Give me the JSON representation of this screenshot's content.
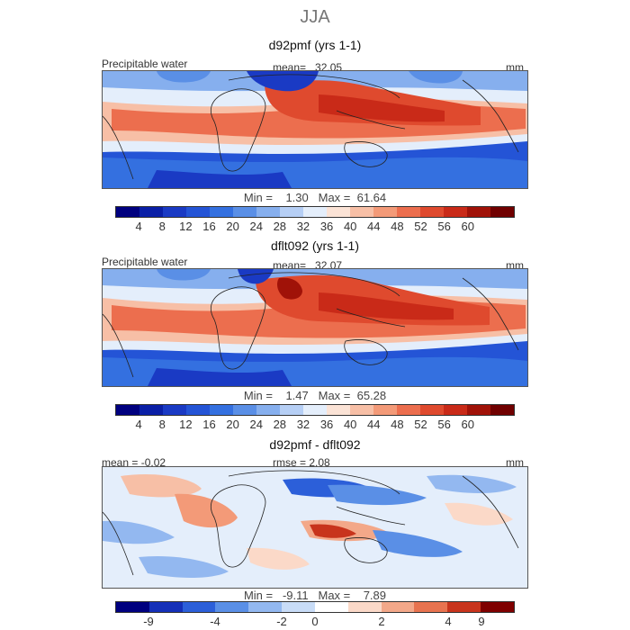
{
  "title": "JJA",
  "panels": [
    {
      "title": "d92pmf (yrs 1-1)",
      "variable": "Precipitable water",
      "mean_label": "mean=",
      "mean": "32.05",
      "units": "mm",
      "min_label": "Min =",
      "min": "1.30",
      "max_label": "Max =",
      "max": "61.64"
    },
    {
      "title": "dflt092 (yrs 1-1)",
      "variable": "Precipitable water",
      "mean_label": "mean=",
      "mean": "32.07",
      "units": "mm",
      "min_label": "Min =",
      "min": "1.47",
      "max_label": "Max =",
      "max": "65.28"
    },
    {
      "title": "d92pmf - dflt092",
      "mean_text": "mean = -0.02",
      "rmse_text": "rmse = 2.08",
      "units": "mm",
      "min_label": "Min =",
      "min": "-9.11",
      "max_label": "Max =",
      "max": "7.89"
    }
  ],
  "colorbar_abs": {
    "colors": [
      "#00007f",
      "#0a1fa6",
      "#1a3ac4",
      "#2454d6",
      "#3470e0",
      "#5a8fe6",
      "#86afee",
      "#b6cff5",
      "#e4eefb",
      "#fbe3d6",
      "#f7bfa6",
      "#f39a78",
      "#ec6e4e",
      "#df4a2e",
      "#c92a18",
      "#a01208",
      "#700000"
    ],
    "ticks": [
      "4",
      "8",
      "12",
      "16",
      "20",
      "24",
      "28",
      "32",
      "36",
      "40",
      "44",
      "48",
      "52",
      "56",
      "60"
    ]
  },
  "colorbar_diff": {
    "colors": [
      "#00007f",
      "#1530b8",
      "#2c5fd9",
      "#5a8fe6",
      "#93b8f0",
      "#c8dcf7",
      "#ffffff",
      "#fbd9c8",
      "#f3a889",
      "#e8734f",
      "#c8341c",
      "#7f0000"
    ],
    "ticks": [
      "-9",
      "-4",
      "-2",
      "0",
      "2",
      "4",
      "9"
    ]
  }
}
